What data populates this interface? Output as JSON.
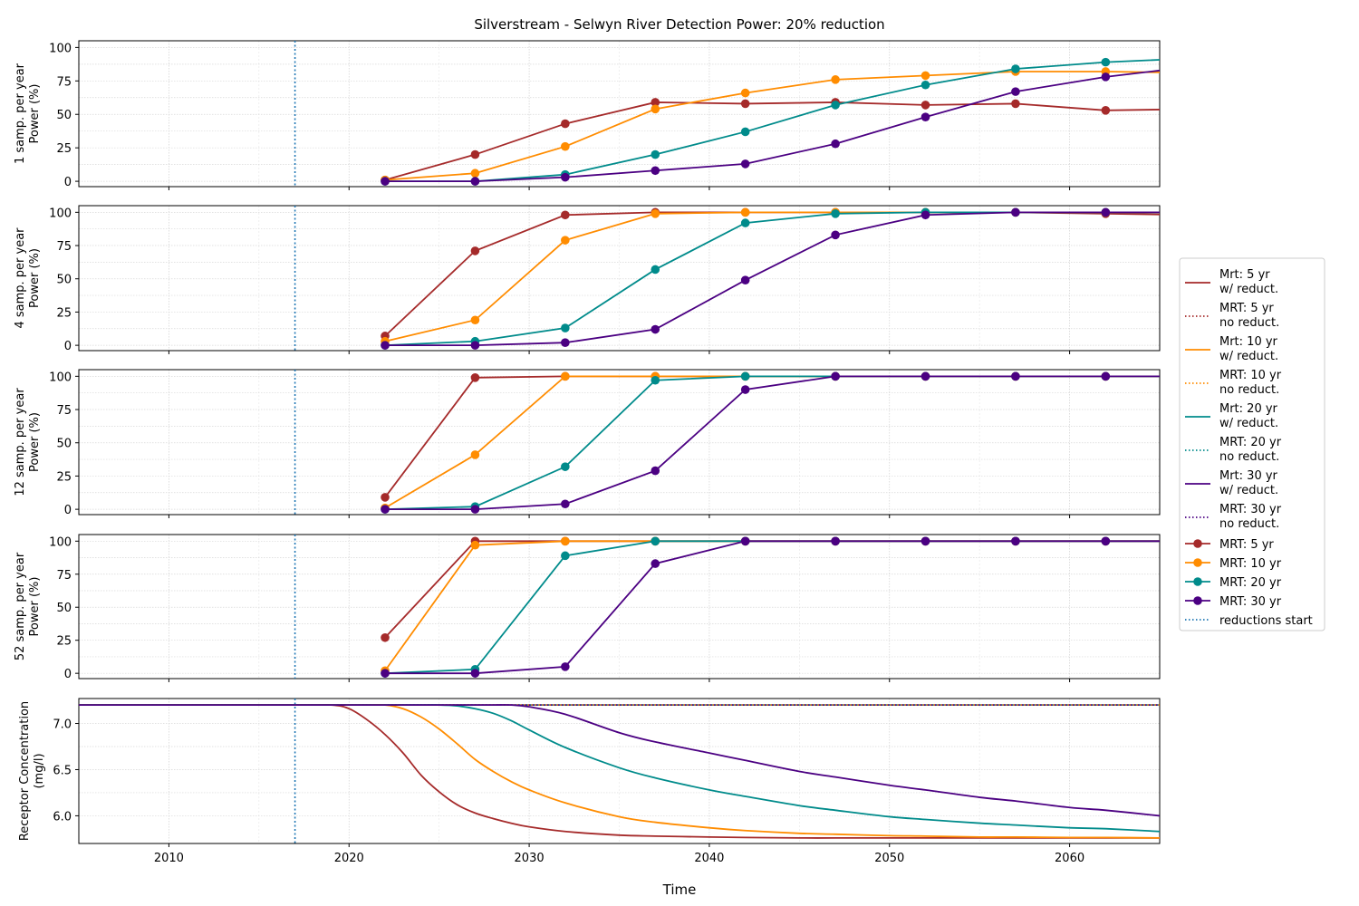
{
  "chart_data": {
    "type": "line",
    "title": "Silverstream - Selwyn River  Detection Power: 20% reduction",
    "xlabel": "Time",
    "xlim": [
      2005,
      2065
    ],
    "xticks": [
      2010,
      2020,
      2030,
      2040,
      2050,
      2060
    ],
    "reductions_start_year": 2017,
    "grid": true,
    "legend_position": "right",
    "colors": {
      "mrt5": "#a52a2a",
      "mrt10": "#ff8c00",
      "mrt20": "#008b8b",
      "mrt30": "#4b0082",
      "reductions": "#1f77b4"
    },
    "sample_years": [
      2022,
      2027,
      2032,
      2037,
      2042,
      2047,
      2052,
      2057,
      2062,
      2067
    ],
    "power_panels": [
      {
        "ylabel_line1": "1 samp. per year",
        "ylabel_line2": "Power (%)",
        "ylim": [
          -4,
          105
        ],
        "yticks": [
          0,
          25,
          50,
          75,
          100
        ],
        "series": [
          {
            "key": "mrt5",
            "values": [
              1,
              20,
              43,
              59,
              58,
              59,
              57,
              58,
              53,
              54
            ]
          },
          {
            "key": "mrt10",
            "values": [
              1,
              6,
              26,
              54,
              66,
              76,
              79,
              82,
              82,
              81
            ]
          },
          {
            "key": "mrt20",
            "values": [
              0,
              0,
              5,
              20,
              37,
              57,
              72,
              84,
              89,
              92
            ]
          },
          {
            "key": "mrt30",
            "values": [
              0,
              0,
              3,
              8,
              13,
              28,
              48,
              67,
              78,
              86
            ]
          }
        ]
      },
      {
        "ylabel_line1": "4 samp. per year",
        "ylabel_line2": "Power (%)",
        "ylim": [
          -4,
          105
        ],
        "yticks": [
          0,
          25,
          50,
          75,
          100
        ],
        "series": [
          {
            "key": "mrt5",
            "values": [
              7,
              71,
              98,
              100,
              100,
              100,
              100,
              100,
              99,
              98
            ]
          },
          {
            "key": "mrt10",
            "values": [
              3,
              19,
              79,
              99,
              100,
              100,
              100,
              100,
              100,
              100
            ]
          },
          {
            "key": "mrt20",
            "values": [
              0,
              3,
              13,
              57,
              92,
              99,
              100,
              100,
              100,
              100
            ]
          },
          {
            "key": "mrt30",
            "values": [
              0,
              0,
              2,
              12,
              49,
              83,
              98,
              100,
              100,
              100
            ]
          }
        ]
      },
      {
        "ylabel_line1": "12 samp. per year",
        "ylabel_line2": "Power (%)",
        "ylim": [
          -4,
          105
        ],
        "yticks": [
          0,
          25,
          50,
          75,
          100
        ],
        "series": [
          {
            "key": "mrt5",
            "values": [
              9,
              99,
              100,
              100,
              100,
              100,
              100,
              100,
              100,
              100
            ]
          },
          {
            "key": "mrt10",
            "values": [
              1,
              41,
              100,
              100,
              100,
              100,
              100,
              100,
              100,
              100
            ]
          },
          {
            "key": "mrt20",
            "values": [
              0,
              2,
              32,
              97,
              100,
              100,
              100,
              100,
              100,
              100
            ]
          },
          {
            "key": "mrt30",
            "values": [
              0,
              0,
              4,
              29,
              90,
              100,
              100,
              100,
              100,
              100
            ]
          }
        ]
      },
      {
        "ylabel_line1": "52 samp. per year",
        "ylabel_line2": "Power (%)",
        "ylim": [
          -4,
          105
        ],
        "yticks": [
          0,
          25,
          50,
          75,
          100
        ],
        "series": [
          {
            "key": "mrt5",
            "values": [
              27,
              100,
              100,
              100,
              100,
              100,
              100,
              100,
              100,
              100
            ]
          },
          {
            "key": "mrt10",
            "values": [
              2,
              97,
              100,
              100,
              100,
              100,
              100,
              100,
              100,
              100
            ]
          },
          {
            "key": "mrt20",
            "values": [
              0,
              3,
              89,
              100,
              100,
              100,
              100,
              100,
              100,
              100
            ]
          },
          {
            "key": "mrt30",
            "values": [
              0,
              0,
              5,
              83,
              100,
              100,
              100,
              100,
              100,
              100
            ]
          }
        ]
      }
    ],
    "concentration_panel": {
      "ylabel_line1": "Receptor Concentration",
      "ylabel_line2": "(mg/l)",
      "ylim": [
        5.7,
        7.27
      ],
      "yticks": [
        6.0,
        6.5,
        7.0
      ],
      "ytick_labels": [
        "6.0",
        "6.5",
        "7.0"
      ],
      "baseline": 7.2,
      "no_reduction_value": 7.2,
      "years": [
        2005,
        2017,
        2019,
        2020,
        2021,
        2022,
        2023,
        2024,
        2025,
        2026,
        2027,
        2028,
        2029,
        2030,
        2032,
        2035,
        2037,
        2040,
        2042,
        2045,
        2047,
        2050,
        2052,
        2055,
        2057,
        2060,
        2062,
        2065
      ],
      "series": [
        {
          "key": "mrt5",
          "values": [
            7.2,
            7.2,
            7.2,
            7.16,
            7.04,
            6.88,
            6.68,
            6.44,
            6.26,
            6.12,
            6.03,
            5.97,
            5.92,
            5.88,
            5.83,
            5.79,
            5.78,
            5.77,
            5.765,
            5.76,
            5.76,
            5.76,
            5.76,
            5.76,
            5.76,
            5.76,
            5.76,
            5.76
          ]
        },
        {
          "key": "mrt10",
          "values": [
            7.2,
            7.2,
            7.2,
            7.2,
            7.2,
            7.2,
            7.16,
            7.07,
            6.94,
            6.78,
            6.61,
            6.48,
            6.37,
            6.28,
            6.14,
            5.99,
            5.93,
            5.87,
            5.84,
            5.81,
            5.8,
            5.785,
            5.78,
            5.77,
            5.77,
            5.765,
            5.765,
            5.76
          ]
        },
        {
          "key": "mrt20",
          "values": [
            7.2,
            7.2,
            7.2,
            7.2,
            7.2,
            7.2,
            7.2,
            7.2,
            7.2,
            7.19,
            7.16,
            7.11,
            7.03,
            6.93,
            6.74,
            6.52,
            6.41,
            6.28,
            6.21,
            6.11,
            6.06,
            5.99,
            5.96,
            5.92,
            5.9,
            5.87,
            5.86,
            5.83
          ]
        },
        {
          "key": "mrt30",
          "values": [
            7.2,
            7.2,
            7.2,
            7.2,
            7.2,
            7.2,
            7.2,
            7.2,
            7.2,
            7.2,
            7.2,
            7.2,
            7.2,
            7.18,
            7.1,
            6.9,
            6.8,
            6.68,
            6.6,
            6.48,
            6.42,
            6.33,
            6.28,
            6.2,
            6.16,
            6.09,
            6.06,
            6.0
          ]
        }
      ]
    },
    "legend": [
      {
        "label_line1": "Mrt: 5 yr",
        "label_line2": "w/ reduct.",
        "key": "mrt5",
        "style": "solid"
      },
      {
        "label_line1": "MRT: 5 yr",
        "label_line2": " no reduct.",
        "key": "mrt5",
        "style": "dotted"
      },
      {
        "label_line1": "Mrt: 10 yr",
        "label_line2": "w/ reduct.",
        "key": "mrt10",
        "style": "solid"
      },
      {
        "label_line1": "MRT: 10 yr",
        "label_line2": " no reduct.",
        "key": "mrt10",
        "style": "dotted"
      },
      {
        "label_line1": "Mrt: 20 yr",
        "label_line2": "w/ reduct.",
        "key": "mrt20",
        "style": "solid"
      },
      {
        "label_line1": "MRT: 20 yr",
        "label_line2": " no reduct.",
        "key": "mrt20",
        "style": "dotted"
      },
      {
        "label_line1": "Mrt: 30 yr",
        "label_line2": "w/ reduct.",
        "key": "mrt30",
        "style": "solid"
      },
      {
        "label_line1": "MRT: 30 yr",
        "label_line2": " no reduct.",
        "key": "mrt30",
        "style": "dotted"
      },
      {
        "label_line1": "MRT: 5 yr",
        "label_line2": "",
        "key": "mrt5",
        "style": "marker"
      },
      {
        "label_line1": "MRT: 10 yr",
        "label_line2": "",
        "key": "mrt10",
        "style": "marker"
      },
      {
        "label_line1": "MRT: 20 yr",
        "label_line2": "",
        "key": "mrt20",
        "style": "marker"
      },
      {
        "label_line1": "MRT: 30 yr",
        "label_line2": "",
        "key": "mrt30",
        "style": "marker"
      },
      {
        "label_line1": "reductions start",
        "label_line2": "",
        "key": "reductions",
        "style": "dotted"
      }
    ]
  }
}
